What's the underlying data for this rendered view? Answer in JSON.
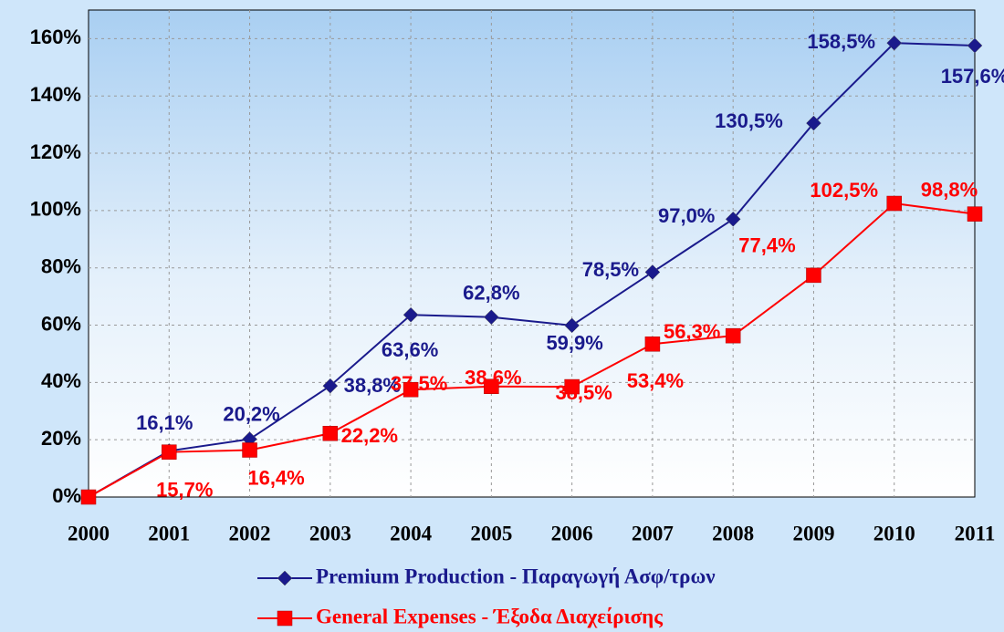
{
  "chart_data": {
    "type": "line",
    "categories": [
      "2000",
      "2001",
      "2002",
      "2003",
      "2004",
      "2005",
      "2006",
      "2007",
      "2008",
      "2009",
      "2010",
      "2011"
    ],
    "series": [
      {
        "name": "Premium Production - Παραγωγή Ασφ/τρων",
        "color": "#1a1a8c",
        "marker": "diamond",
        "values": [
          0,
          16.1,
          20.2,
          38.8,
          63.6,
          62.8,
          59.9,
          78.5,
          97.0,
          130.5,
          158.5,
          157.6
        ],
        "value_labels": [
          null,
          "16,1%",
          "20,2%",
          "38,8%",
          "63,6%",
          "62,8%",
          "59,9%",
          "78,5%",
          "97,0%",
          "130,5%",
          "158,5%",
          "157,6%"
        ]
      },
      {
        "name": "General Expenses - Έξοδα Διαχείρισης",
        "color": "#ff0000",
        "marker": "square",
        "values": [
          0,
          15.7,
          16.4,
          22.2,
          37.5,
          38.6,
          38.5,
          53.4,
          56.3,
          77.4,
          102.5,
          98.8
        ],
        "value_labels": [
          null,
          "15,7%",
          "16,4%",
          "22,2%",
          "37,5%",
          "38,6%",
          "38,5%",
          "53,4%",
          "56,3%",
          "77,4%",
          "102,5%",
          "98,8%"
        ]
      }
    ],
    "ylim": [
      0,
      170
    ],
    "yticks": [
      {
        "value": 0,
        "label": "0%"
      },
      {
        "value": 20,
        "label": "20%"
      },
      {
        "value": 40,
        "label": "40%"
      },
      {
        "value": 60,
        "label": "60%"
      },
      {
        "value": 80,
        "label": "80%"
      },
      {
        "value": 100,
        "label": "100%"
      },
      {
        "value": 120,
        "label": "120%"
      },
      {
        "value": 140,
        "label": "140%"
      },
      {
        "value": 160,
        "label": "160%"
      }
    ],
    "grid": true,
    "legend": "bottom"
  }
}
